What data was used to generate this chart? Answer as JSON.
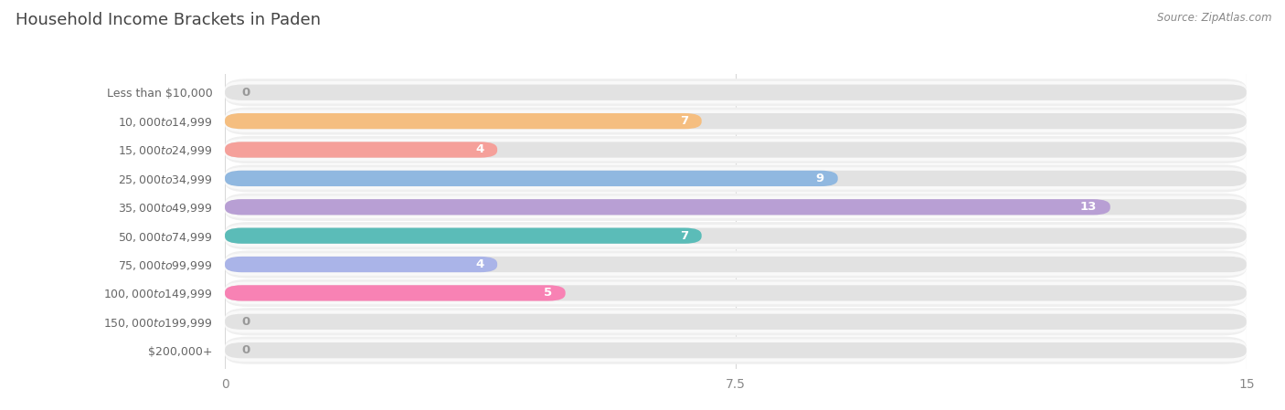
{
  "title": "Household Income Brackets in Paden",
  "source": "Source: ZipAtlas.com",
  "categories": [
    "Less than $10,000",
    "$10,000 to $14,999",
    "$15,000 to $24,999",
    "$25,000 to $34,999",
    "$35,000 to $49,999",
    "$50,000 to $74,999",
    "$75,000 to $99,999",
    "$100,000 to $149,999",
    "$150,000 to $199,999",
    "$200,000+"
  ],
  "values": [
    0,
    7,
    4,
    9,
    13,
    7,
    4,
    5,
    0,
    0
  ],
  "bar_colors": [
    "#f49db5",
    "#f5be80",
    "#f5a09a",
    "#90b8e0",
    "#b89fd4",
    "#5bbcb8",
    "#aab4e8",
    "#f882b4",
    "#f5d090",
    "#f4b0a8"
  ],
  "xlim": [
    0,
    15
  ],
  "xticks": [
    0,
    7.5,
    15
  ],
  "title_fontsize": 13,
  "label_fontsize": 9,
  "tick_fontsize": 10,
  "bar_height": 0.55,
  "row_bg_color": "#efefef",
  "row_inner_color": "#f9f9f9",
  "bar_bg_color": "#e2e2e2",
  "grid_color": "#d8d8d8",
  "label_color": "#666666",
  "value_inside_color": "#ffffff",
  "value_outside_color": "#999999"
}
